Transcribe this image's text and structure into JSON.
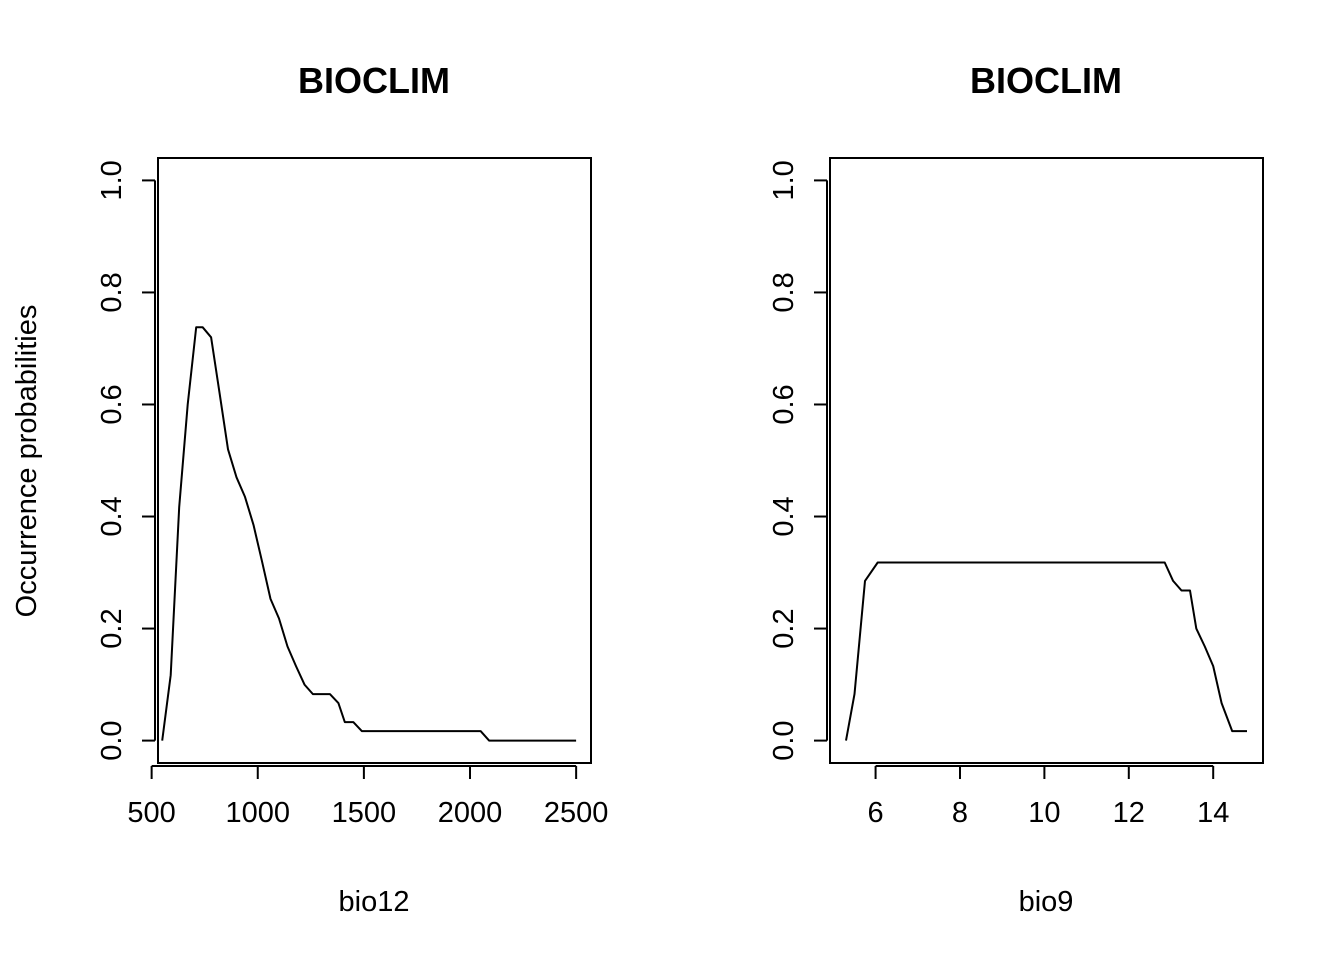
{
  "chart_data": [
    {
      "type": "line",
      "title": "BIOCLIM",
      "xlabel": "bio12",
      "ylabel": "Occurrence probabilities",
      "xlim": [
        530,
        2570
      ],
      "ylim": [
        -0.04,
        1.04
      ],
      "x_ticks": [
        500,
        1000,
        1500,
        2000,
        2500
      ],
      "y_ticks": [
        0.0,
        0.2,
        0.4,
        0.6,
        0.8,
        1.0
      ],
      "x_tick_labels": [
        "500",
        "1000",
        "1500",
        "2000",
        "2500"
      ],
      "y_tick_labels": [
        "0.0",
        "0.2",
        "0.4",
        "0.6",
        "0.8",
        "1.0"
      ],
      "series": [
        {
          "x": [
            550,
            590,
            630,
            670,
            710,
            740,
            780,
            820,
            860,
            900,
            940,
            980,
            1020,
            1060,
            1100,
            1140,
            1180,
            1220,
            1260,
            1300,
            1340,
            1380,
            1410,
            1450,
            1490,
            1530,
            1600,
            1700,
            1800,
            1900,
            2000,
            2050,
            2090,
            2200,
            2300,
            2400,
            2500
          ],
          "y": [
            0.0,
            0.117,
            0.417,
            0.6,
            0.738,
            0.738,
            0.72,
            0.62,
            0.52,
            0.47,
            0.435,
            0.385,
            0.32,
            0.253,
            0.218,
            0.168,
            0.133,
            0.1,
            0.083,
            0.083,
            0.083,
            0.067,
            0.033,
            0.033,
            0.017,
            0.017,
            0.017,
            0.017,
            0.017,
            0.017,
            0.017,
            0.017,
            0.0,
            0.0,
            0.0,
            0.0,
            0.0
          ]
        }
      ]
    },
    {
      "type": "line",
      "title": "BIOCLIM",
      "xlabel": "bio9",
      "ylabel": "",
      "xlim": [
        4.92,
        15.18
      ],
      "ylim": [
        -0.04,
        1.04
      ],
      "x_ticks": [
        6,
        8,
        10,
        12,
        14
      ],
      "y_ticks": [
        0.0,
        0.2,
        0.4,
        0.6,
        0.8,
        1.0
      ],
      "x_tick_labels": [
        "6",
        "8",
        "10",
        "12",
        "14"
      ],
      "y_tick_labels": [
        "0.0",
        "0.2",
        "0.4",
        "0.6",
        "0.8",
        "1.0"
      ],
      "series": [
        {
          "x": [
            5.3,
            5.5,
            5.75,
            6.05,
            6.5,
            8,
            10,
            12,
            12.85,
            13.05,
            13.25,
            13.45,
            13.6,
            13.8,
            14.0,
            14.2,
            14.45,
            14.8
          ],
          "y": [
            0.0,
            0.083,
            0.285,
            0.318,
            0.318,
            0.318,
            0.318,
            0.318,
            0.318,
            0.285,
            0.268,
            0.268,
            0.2,
            0.168,
            0.133,
            0.067,
            0.017,
            0.017
          ]
        }
      ]
    }
  ]
}
